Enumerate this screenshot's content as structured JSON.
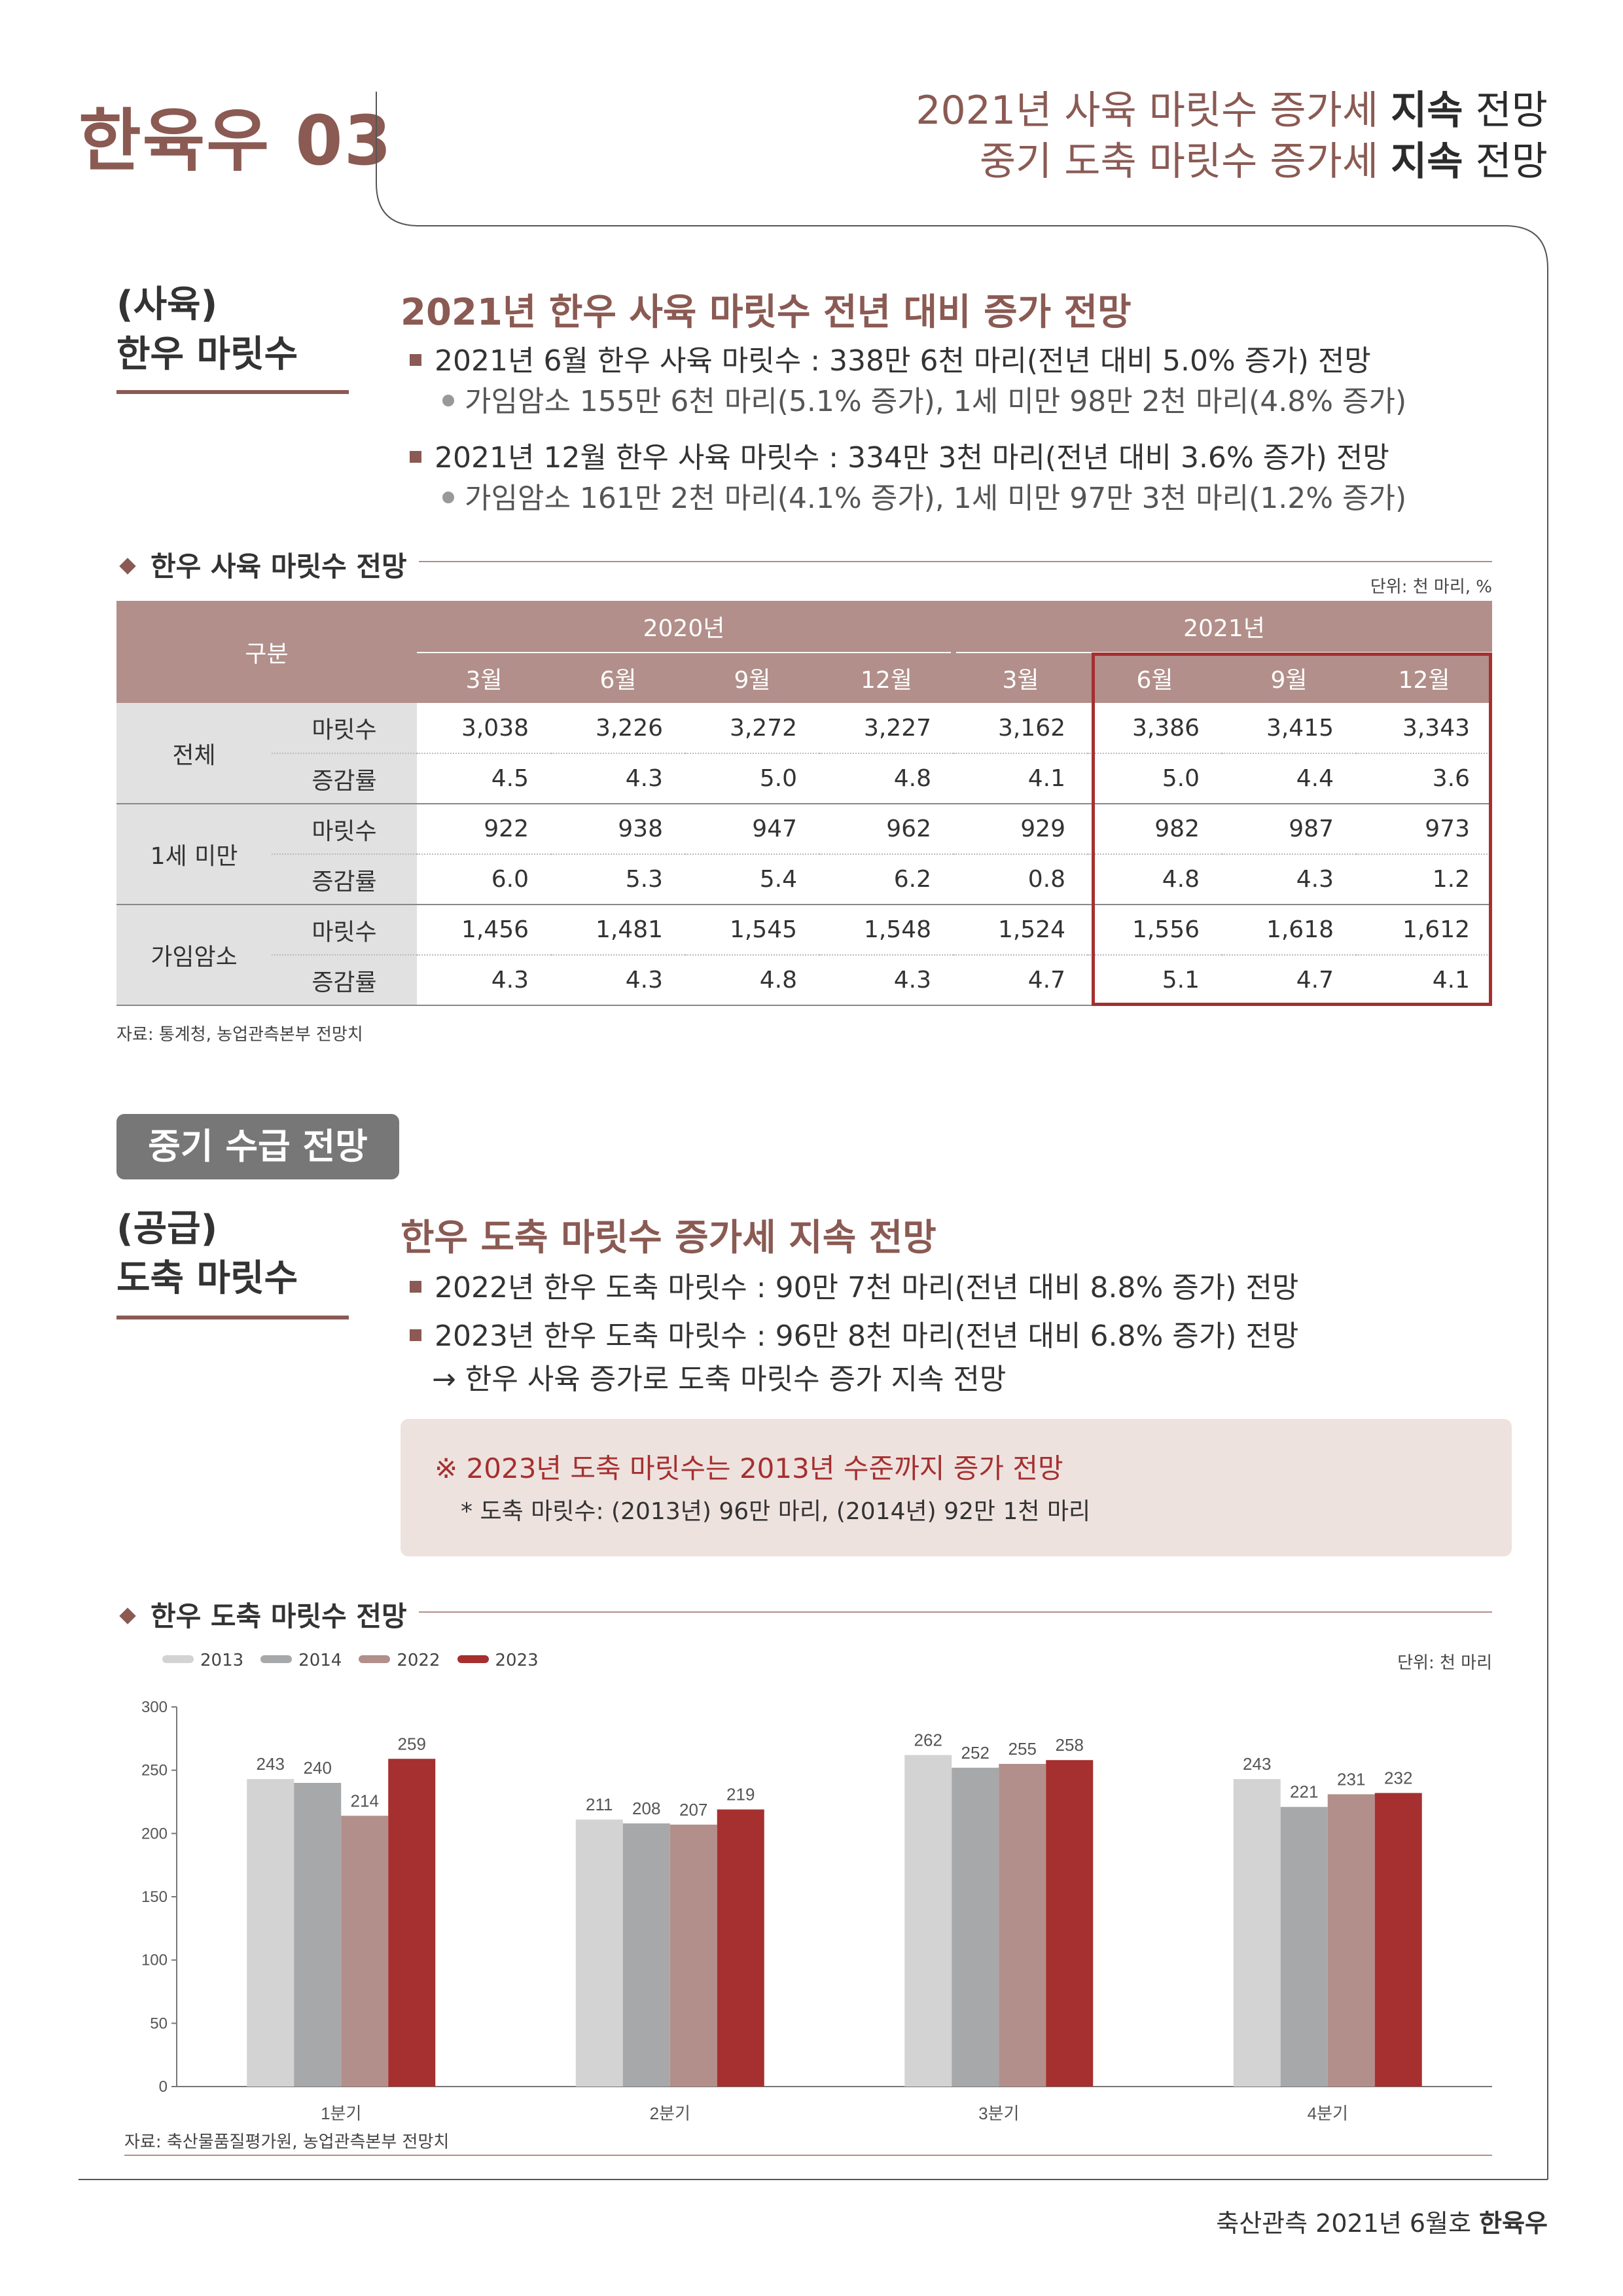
{
  "header": {
    "title": "한육우 03",
    "subtitle_line1": {
      "a": "2021년 사육 마릿수 증가세 ",
      "b": "지속",
      "c": " 전망"
    },
    "subtitle_line2": {
      "a": "중기 도축 마릿수 증가세 ",
      "b": "지속",
      "c": " 전망"
    }
  },
  "section1": {
    "left_line1": "(사육)",
    "left_line2": "한우 마릿수",
    "headline": "2021년 한우 사육 마릿수 전년 대비 증가 전망",
    "bullet1": "2021년 6월 한우 사육 마릿수 : 338만 6천 마리(전년 대비 5.0% 증가) 전망",
    "sub1": "가임암소 155만 6천 마리(5.1% 증가), 1세 미만 98만 2천 마리(4.8% 증가)",
    "bullet2": "2021년 12월 한우 사육 마릿수 : 334만 3천 마리(전년 대비 3.6% 증가) 전망",
    "sub2": "가임암소 161만 2천 마리(4.1% 증가), 1세 미만 97만 3천 마리(1.2% 증가)"
  },
  "table1": {
    "caption": "한우 사육 마릿수 전망",
    "unit": "단위: 천 마리, %",
    "corner": "구분",
    "year_2020": "2020년",
    "year_2021": "2021년",
    "months": [
      "3월",
      "6월",
      "9월",
      "12월",
      "3월",
      "6월",
      "9월",
      "12월"
    ],
    "groups": [
      {
        "name": "전체",
        "rows": [
          {
            "label": "마릿수",
            "values": [
              "3,038",
              "3,226",
              "3,272",
              "3,227",
              "3,162",
              "3,386",
              "3,415",
              "3,343"
            ]
          },
          {
            "label": "증감률",
            "values": [
              "4.5",
              "4.3",
              "5.0",
              "4.8",
              "4.1",
              "5.0",
              "4.4",
              "3.6"
            ]
          }
        ]
      },
      {
        "name": "1세 미만",
        "rows": [
          {
            "label": "마릿수",
            "values": [
              "922",
              "938",
              "947",
              "962",
              "929",
              "982",
              "987",
              "973"
            ]
          },
          {
            "label": "증감률",
            "values": [
              "6.0",
              "5.3",
              "5.4",
              "6.2",
              "0.8",
              "4.8",
              "4.3",
              "1.2"
            ]
          }
        ]
      },
      {
        "name": "가임암소",
        "rows": [
          {
            "label": "마릿수",
            "values": [
              "1,456",
              "1,481",
              "1,545",
              "1,548",
              "1,524",
              "1,556",
              "1,618",
              "1,612"
            ]
          },
          {
            "label": "증감률",
            "values": [
              "4.3",
              "4.3",
              "4.8",
              "4.3",
              "4.7",
              "5.1",
              "4.7",
              "4.1"
            ]
          }
        ]
      }
    ],
    "source": "자료: 통계청, 농업관측본부 전망치"
  },
  "midterm_badge": "중기 수급 전망",
  "section2": {
    "left_line1": "(공급)",
    "left_line2": "도축 마릿수",
    "headline": "한우 도축 마릿수 증가세 지속 전망",
    "bullet1": "2022년 한우 도축 마릿수 : 90만 7천 마리(전년 대비 8.8% 증가) 전망",
    "bullet2": "2023년 한우 도축 마릿수 : 96만 8천 마리(전년 대비 6.8% 증가) 전망",
    "arrow_line": "→ 한우 사육 증가로 도축 마릿수 증가 지속 전망",
    "callout_main": "※ 2023년 도축 마릿수는 2013년 수준까지 증가 전망",
    "callout_sub": "* 도축 마릿수: (2013년) 96만 마리, (2014년) 92만 1천 마리"
  },
  "chart": {
    "caption": "한우 도축 마릿수 전망",
    "unit": "단위: 천 마리",
    "source": "자료: 축산물품질평가원, 농업관측본부 전망치"
  },
  "chart_data": {
    "type": "bar",
    "title": "한우 도축 마릿수 전망",
    "categories": [
      "1분기",
      "2분기",
      "3분기",
      "4분기"
    ],
    "series": [
      {
        "name": "2013",
        "color": "#d3d3d3",
        "values": [
          243,
          211,
          262,
          243
        ]
      },
      {
        "name": "2014",
        "color": "#a7a8aa",
        "values": [
          240,
          208,
          252,
          221
        ]
      },
      {
        "name": "2022",
        "color": "#b28f8a",
        "values": [
          214,
          207,
          255,
          231
        ]
      },
      {
        "name": "2023",
        "color": "#a5302f",
        "values": [
          259,
          219,
          258,
          232
        ]
      }
    ],
    "ylim": [
      0,
      300
    ],
    "yticks": [
      0,
      50,
      100,
      150,
      200,
      250,
      300
    ],
    "legend": "top-left",
    "grid": false
  },
  "footer": {
    "text": "축산관측 2021년 6월호 ",
    "bold": "한육우"
  }
}
